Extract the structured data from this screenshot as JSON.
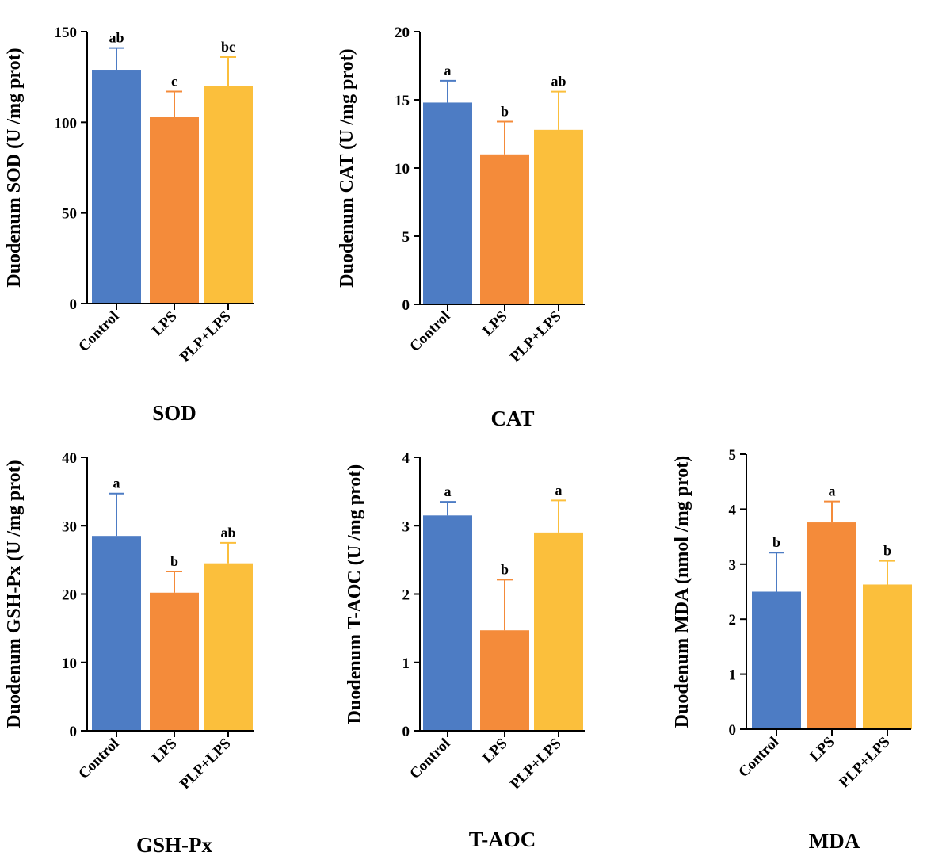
{
  "colors": {
    "Control": "#4d7cc4",
    "LPS": "#f48b3a",
    "PLP+LPS": "#fbbf3c"
  },
  "chart_data": [
    {
      "type": "bar",
      "title": "SOD",
      "ylabel": "Duodenum SOD (U /mg prot)",
      "categories": [
        "Control",
        "LPS",
        "PLP+LPS"
      ],
      "values": [
        129,
        103,
        120
      ],
      "errors": [
        12,
        14,
        16
      ],
      "significance": [
        "ab",
        "c",
        "bc"
      ],
      "ylim": [
        0,
        150
      ],
      "yticks": [
        0,
        50,
        100,
        150
      ]
    },
    {
      "type": "bar",
      "title": "CAT",
      "ylabel": "Duodenum CAT (U /mg prot)",
      "categories": [
        "Control",
        "LPS",
        "PLP+LPS"
      ],
      "values": [
        14.8,
        11.0,
        12.8
      ],
      "errors": [
        1.6,
        2.4,
        2.8
      ],
      "significance": [
        "a",
        "b",
        "ab"
      ],
      "ylim": [
        0,
        20
      ],
      "yticks": [
        0,
        5,
        10,
        15,
        20
      ]
    },
    {
      "type": "bar",
      "title": "GSH-Px",
      "ylabel": "Duodenum GSH-Px (U /mg prot)",
      "categories": [
        "Control",
        "LPS",
        "PLP+LPS"
      ],
      "values": [
        28.5,
        20.2,
        24.5
      ],
      "errors": [
        6.2,
        3.1,
        3.0
      ],
      "significance": [
        "a",
        "b",
        "ab"
      ],
      "ylim": [
        0,
        40
      ],
      "yticks": [
        0,
        10,
        20,
        30,
        40
      ]
    },
    {
      "type": "bar",
      "title": "T-AOC",
      "ylabel": "Duodenum T-AOC (U /mg prot)",
      "categories": [
        "Control",
        "LPS",
        "PLP+LPS"
      ],
      "values": [
        3.15,
        1.47,
        2.9
      ],
      "errors": [
        0.2,
        0.74,
        0.47
      ],
      "significance": [
        "a",
        "b",
        "a"
      ],
      "ylim": [
        0,
        4
      ],
      "yticks": [
        0,
        1,
        2,
        3,
        4
      ]
    },
    {
      "type": "bar",
      "title": "MDA",
      "ylabel": "Duodenum MDA (nmol /mg prot)",
      "categories": [
        "Control",
        "LPS",
        "PLP+LPS"
      ],
      "values": [
        2.5,
        3.76,
        2.63
      ],
      "errors": [
        0.71,
        0.38,
        0.43
      ],
      "significance": [
        "b",
        "a",
        "b"
      ],
      "ylim": [
        0,
        5
      ],
      "yticks": [
        0,
        1,
        2,
        3,
        4,
        5
      ]
    }
  ]
}
